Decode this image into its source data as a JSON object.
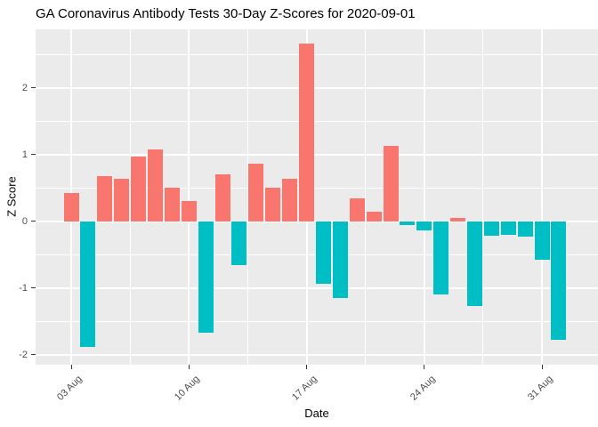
{
  "colors": {
    "bar_positive": "#F8766D",
    "bar_negative": "#00BFC4",
    "panel_background": "#EBEBEB",
    "gridline": "#FFFFFF",
    "tick_mark": "#333333",
    "tick_label": "#4D4D4D",
    "text": "#000000",
    "page_background": "#FFFFFF"
  },
  "chart_data": {
    "type": "bar",
    "title": "GA Coronavirus Antibody Tests 30-Day Z-Scores for 2020-09-01",
    "xlabel": "Date",
    "ylabel": "Z Score",
    "legend": "none",
    "grid": "on",
    "color_rule": "positive values salmon, negative values teal",
    "categories": [
      "2020-08-03",
      "2020-08-04",
      "2020-08-05",
      "2020-08-06",
      "2020-08-07",
      "2020-08-08",
      "2020-08-09",
      "2020-08-10",
      "2020-08-11",
      "2020-08-12",
      "2020-08-13",
      "2020-08-14",
      "2020-08-15",
      "2020-08-16",
      "2020-08-17",
      "2020-08-18",
      "2020-08-19",
      "2020-08-20",
      "2020-08-21",
      "2020-08-22",
      "2020-08-23",
      "2020-08-24",
      "2020-08-25",
      "2020-08-26",
      "2020-08-27",
      "2020-08-28",
      "2020-08-29",
      "2020-08-30",
      "2020-08-31",
      "2020-09-01"
    ],
    "values": [
      0.42,
      -1.88,
      0.68,
      0.64,
      0.97,
      1.08,
      0.5,
      0.31,
      -1.67,
      0.71,
      -0.65,
      0.86,
      0.5,
      0.64,
      2.66,
      -0.94,
      -1.15,
      0.34,
      0.15,
      1.13,
      -0.06,
      -0.13,
      -1.09,
      0.05,
      -1.27,
      -0.21,
      -0.2,
      -0.23,
      -0.57,
      -1.78
    ],
    "ylim": [
      -2.15,
      2.88
    ],
    "x_domain_days": [
      -2.12,
      31.33
    ],
    "yticks": [
      {
        "v": 2,
        "label": "2"
      },
      {
        "v": 1,
        "label": "1"
      },
      {
        "v": 0,
        "label": "0"
      },
      {
        "v": -1,
        "label": "-1"
      },
      {
        "v": -2,
        "label": "-2"
      }
    ],
    "y_minor": [
      2.5,
      1.5,
      0.5,
      -0.5,
      -1.5
    ],
    "xticks": [
      {
        "day": 0,
        "label": "03 Aug"
      },
      {
        "day": 7,
        "label": "10 Aug"
      },
      {
        "day": 14,
        "label": "17 Aug"
      },
      {
        "day": 21,
        "label": "24 Aug"
      },
      {
        "day": 28,
        "label": "31 Aug"
      }
    ],
    "x_minor_days": [
      3.5,
      10.5,
      17.5,
      24.5
    ]
  }
}
